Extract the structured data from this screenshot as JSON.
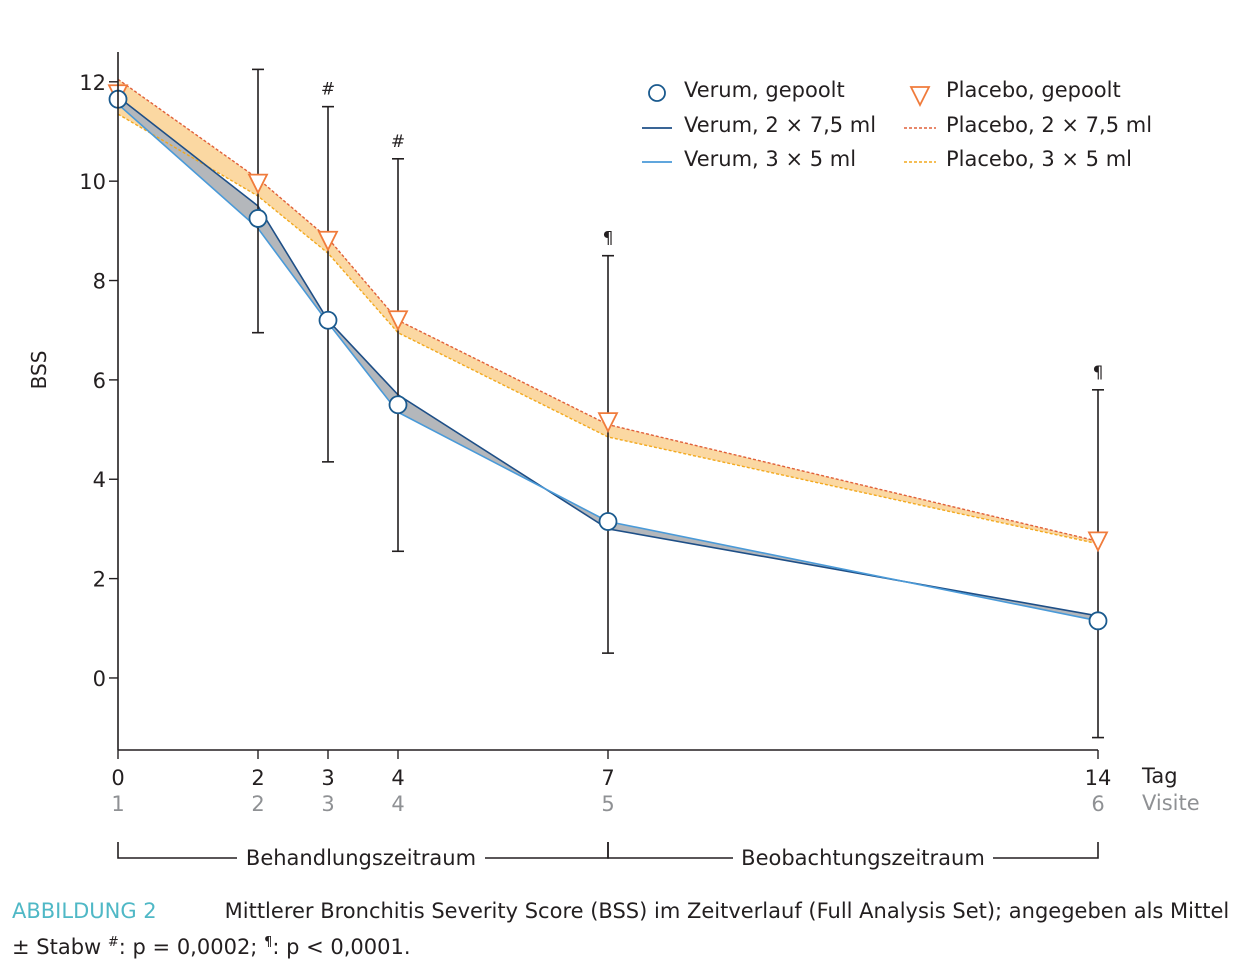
{
  "chart_data": {
    "type": "line",
    "ylabel": "BSS",
    "ylim": [
      -1.45,
      12.6
    ],
    "yticks": [
      0,
      2,
      4,
      6,
      8,
      10,
      12
    ],
    "x": [
      0,
      2,
      3,
      4,
      7,
      14
    ],
    "x_tick_labels": [
      "0",
      "2",
      "3",
      "4",
      "7",
      "14"
    ],
    "x_axis_label": "Tag",
    "visit_tick_labels": [
      "1",
      "2",
      "3",
      "4",
      "5",
      "6"
    ],
    "visit_axis_label": "Visite",
    "series": [
      {
        "name": "Verum, gepoolt",
        "marker": "circle",
        "color": "#1a5a8e",
        "values": [
          11.65,
          9.25,
          7.2,
          5.5,
          3.15,
          1.15
        ],
        "error_upper": [
          null,
          12.25,
          11.5,
          10.45,
          8.5,
          5.8
        ],
        "error_lower": [
          null,
          6.95,
          4.35,
          2.55,
          0.5,
          -1.2
        ]
      },
      {
        "name": "Placebo, gepoolt",
        "marker": "triangle-down",
        "color": "#f07b3b",
        "values": [
          11.75,
          9.95,
          8.8,
          7.2,
          5.15,
          2.75
        ]
      },
      {
        "name": "Verum, 2 × 7,5 ml",
        "line": "solid",
        "color": "#1e4f87",
        "values": [
          11.7,
          9.5,
          7.2,
          5.7,
          3.0,
          1.25
        ]
      },
      {
        "name": "Verum, 3 × 5 ml",
        "line": "solid",
        "color": "#4a9ad8",
        "values": [
          11.55,
          9.05,
          7.15,
          5.35,
          3.15,
          1.15
        ]
      },
      {
        "name": "Placebo, 2 × 7,5 ml",
        "line": "dotted",
        "color": "#e0603a",
        "values": [
          12.05,
          10.05,
          8.85,
          7.2,
          5.1,
          2.75
        ]
      },
      {
        "name": "Placebo, 3 × 5 ml",
        "line": "dotted",
        "color": "#f2a91e",
        "values": [
          11.35,
          9.7,
          8.55,
          6.95,
          4.85,
          2.7
        ]
      }
    ],
    "significance_marks": [
      {
        "x": 3,
        "symbol": "#"
      },
      {
        "x": 4,
        "symbol": "#"
      },
      {
        "x": 7,
        "symbol": "¶"
      },
      {
        "x": 14,
        "symbol": "¶"
      }
    ],
    "periods": [
      {
        "label": "Behandlungszeitraum",
        "from": 0,
        "to": 7
      },
      {
        "label": "Beobachtungszeitraum",
        "from": 7,
        "to": 14
      }
    ],
    "band_colors": {
      "verum": "#b4b7bb",
      "placebo": "#fbd8a2"
    },
    "legend_position": "top-right",
    "grid": false
  },
  "caption": {
    "label": "ABBILDUNG 2",
    "text": "Mittlerer Bronchitis Severity Score (BSS) im Zeitverlauf (Full Analysis Set); angegeben als Mittel ± Stabw ",
    "note1_sup": "#",
    "note1": ": p = 0,0002; ",
    "note2_sup": "¶",
    "note2": ": p < 0,0001."
  }
}
